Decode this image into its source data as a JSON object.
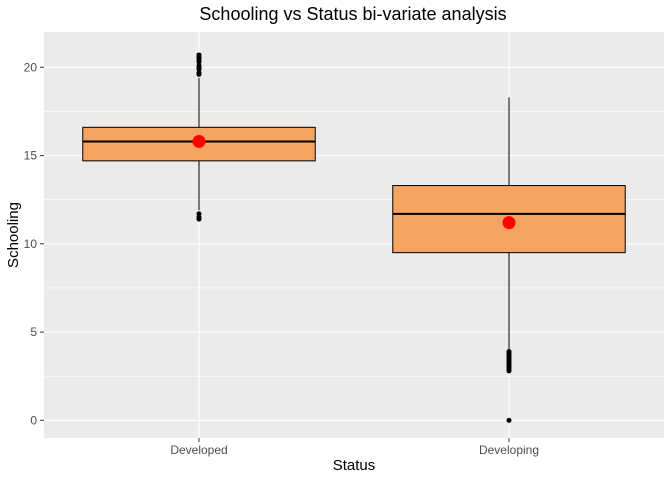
{
  "chart_data": {
    "type": "box",
    "title": "Schooling vs Status bi-variate analysis",
    "xlabel": "Status",
    "ylabel": "Schooling",
    "ylim": [
      -1,
      22
    ],
    "yticks": [
      0,
      5,
      10,
      15,
      20
    ],
    "grid": true,
    "colors": {
      "panel": "#ebebeb",
      "grid_major": "#ffffff",
      "box_fill": "#f4a460",
      "box_stroke": "#000000",
      "mean_point": "#ff0000",
      "outlier": "#000000",
      "tick_text": "#4d4d4d"
    },
    "categories": [
      "Developed",
      "Developing"
    ],
    "boxes": [
      {
        "category": "Developed",
        "q1": 14.7,
        "median": 15.8,
        "q3": 16.6,
        "whisker_low": 11.9,
        "whisker_high": 19.4,
        "mean": 15.8,
        "outliers": [
          11.4,
          11.5,
          11.7,
          19.6,
          19.7,
          19.9,
          20.0,
          20.1,
          20.3,
          20.4,
          20.5,
          20.6,
          20.7
        ]
      },
      {
        "category": "Developing",
        "q1": 9.5,
        "median": 11.7,
        "q3": 13.3,
        "whisker_low": 4.0,
        "whisker_high": 18.3,
        "mean": 11.2,
        "outliers": [
          0.0,
          2.8,
          2.9,
          3.0,
          3.1,
          3.2,
          3.3,
          3.4,
          3.5,
          3.6,
          3.7,
          3.8,
          3.9
        ]
      }
    ]
  }
}
